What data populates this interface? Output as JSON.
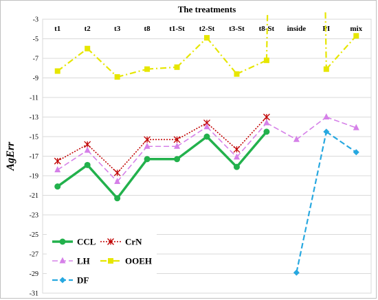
{
  "chart_data": {
    "type": "line",
    "title": "The treatments",
    "xlabel": "",
    "ylabel": "AgErr",
    "categories": [
      "t1",
      "t2",
      "t3",
      "t8",
      "t1-St",
      "t2-St",
      "t3-St",
      "t8-St",
      "inside",
      "PI",
      "mix"
    ],
    "ylim": [
      -31,
      -3
    ],
    "yticks": [
      -3,
      -5,
      -7,
      -9,
      -11,
      -13,
      -15,
      -17,
      -19,
      -21,
      -23,
      -25,
      -27,
      -29,
      -31
    ],
    "grid": true,
    "legend_position": "bottom-left",
    "series": [
      {
        "name": "CCL",
        "color": "#22b14c",
        "marker": "circle",
        "dash": "solid",
        "width": 3.5,
        "values": [
          -20.1,
          -17.9,
          -21.3,
          -17.3,
          -17.3,
          -15.0,
          -18.1,
          -14.5,
          null,
          null,
          null
        ]
      },
      {
        "name": "CrN",
        "color": "#c00000",
        "marker": "x",
        "dash": "dotted",
        "width": 1.6,
        "values": [
          -17.5,
          -15.8,
          -18.7,
          -15.3,
          -15.3,
          -13.6,
          -16.3,
          -13.0,
          null,
          null,
          null
        ]
      },
      {
        "name": "LH",
        "color": "#d580e8",
        "marker": "triangle",
        "dash": "dashed",
        "width": 1.6,
        "values": [
          -18.4,
          -16.4,
          -19.6,
          -16.0,
          -16.0,
          -14.0,
          -17.1,
          -13.6,
          -15.3,
          -13.0,
          -14.1
        ]
      },
      {
        "name": "OOEH",
        "color": "#e6e600",
        "marker": "square",
        "dash": "dashdot",
        "width": 2.2,
        "values": [
          -8.3,
          -6.0,
          -8.9,
          -8.1,
          -7.9,
          -4.9,
          -8.6,
          -7.2,
          null,
          -8.1,
          -4.7
        ],
        "offchart_segments": [
          [
            7,
            8,
            -1
          ],
          [
            8,
            9,
            -1
          ]
        ]
      },
      {
        "name": "DF",
        "color": "#27a8e0",
        "marker": "diamond",
        "dash": "dashed",
        "width": 2.2,
        "values": [
          null,
          null,
          null,
          null,
          null,
          null,
          null,
          null,
          -28.9,
          -14.5,
          -16.6
        ]
      }
    ]
  }
}
